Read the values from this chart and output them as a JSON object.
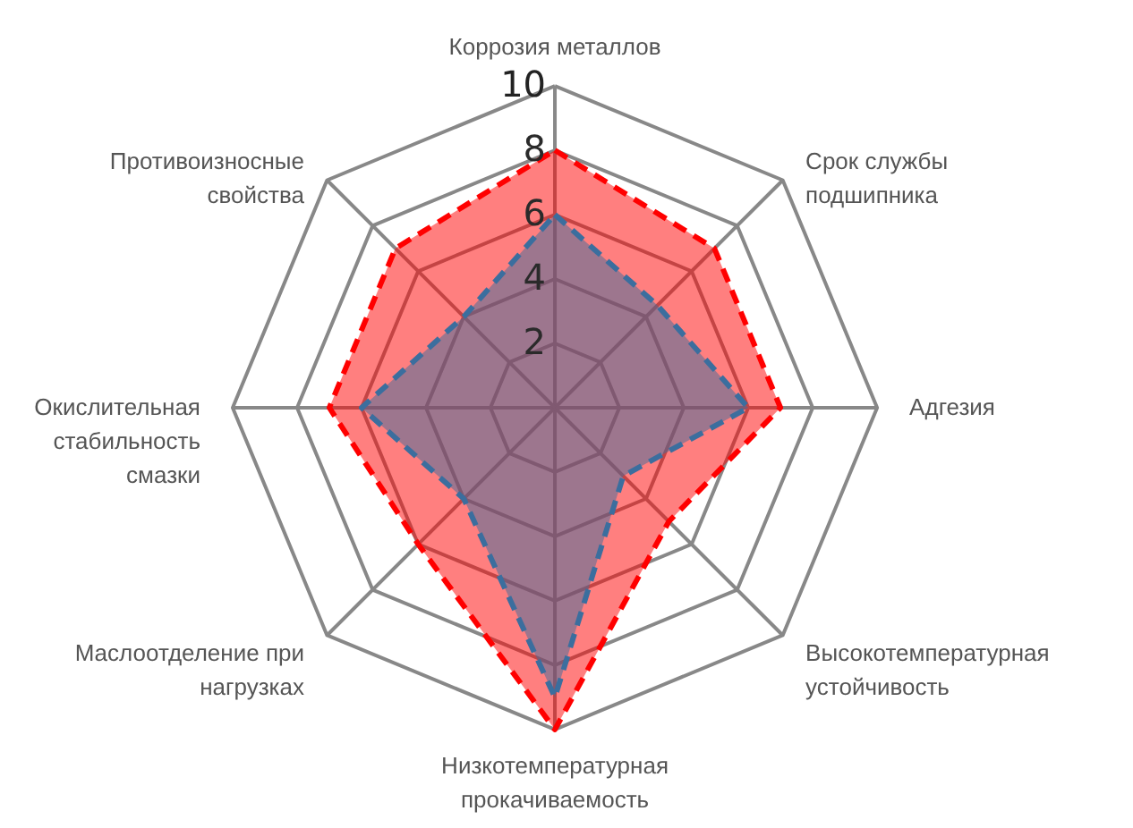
{
  "chart_data": {
    "type": "radar",
    "categories": [
      "Коррозия металлов",
      "Срок службы подшипника",
      "Адгезия",
      "Высокотемпературная устойчивость",
      "Низкотемпературная прокачиваемость",
      "Маслоотделение при нагрузках",
      "Окислительная стабильность смазки",
      "Противоизносные свойства"
    ],
    "series": [
      {
        "color": "#ff0000",
        "values": [
          8,
          7,
          7,
          5,
          10,
          6,
          7,
          7
        ]
      },
      {
        "color": "#3b6e9e",
        "values": [
          6,
          4.5,
          6,
          3,
          9,
          4,
          6,
          4
        ]
      }
    ],
    "ylim": [
      0,
      10
    ],
    "yticks": [
      2,
      4,
      6,
      8,
      10
    ],
    "grid": true,
    "line_style": "dashed"
  }
}
